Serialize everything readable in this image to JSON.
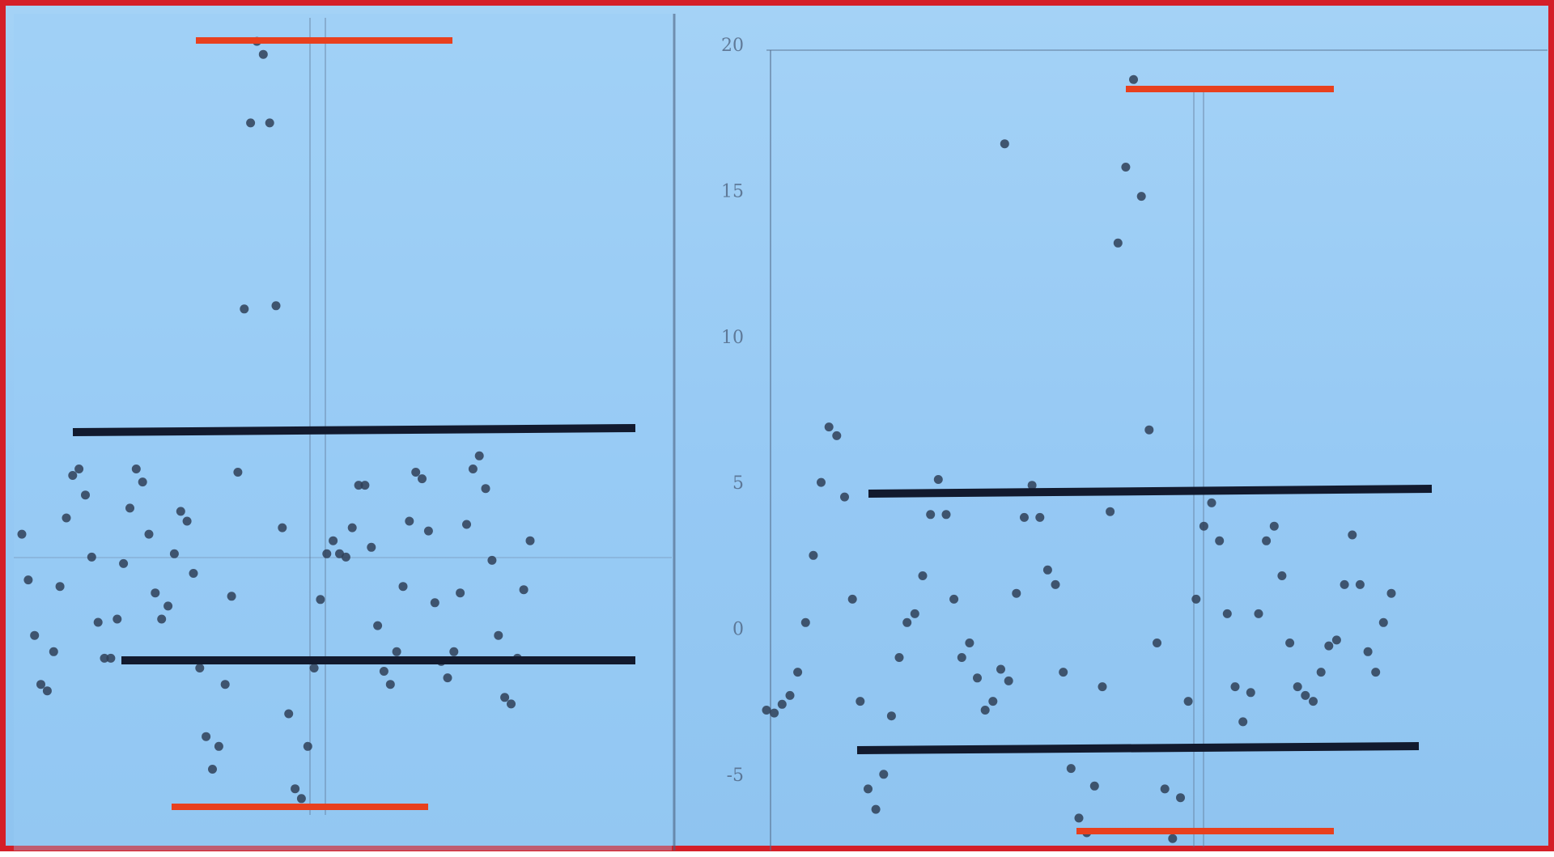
{
  "colors": {
    "background": "#96c9f4",
    "frame": "#d41f28",
    "data_points": "#2f3f57",
    "trace_line": "#5a6f8c",
    "outer_band_lines": "#e8401e",
    "inner_band_lines": "#121a2e"
  },
  "header": {
    "title": ""
  },
  "chart_data": [
    {
      "type": "scatter",
      "title": "",
      "xlabel": "",
      "ylabel": "",
      "grid": false,
      "xlim": [
        0,
        100
      ],
      "ylim": [
        -3.0,
        21.0
      ],
      "y_ticks": [],
      "series": [
        {
          "values": [
            {
              "x": 0,
              "y": 5.6
            },
            {
              "x": 1,
              "y": 4.2
            },
            {
              "x": 2,
              "y": 2.5
            },
            {
              "x": 3,
              "y": 1.0
            },
            {
              "x": 4,
              "y": 0.8
            },
            {
              "x": 5,
              "y": 2.0
            },
            {
              "x": 6,
              "y": 4.0
            },
            {
              "x": 7,
              "y": 6.1
            },
            {
              "x": 8,
              "y": 7.4
            },
            {
              "x": 9,
              "y": 7.6
            },
            {
              "x": 10,
              "y": 6.8
            },
            {
              "x": 11,
              "y": 4.9
            },
            {
              "x": 12,
              "y": 2.9
            },
            {
              "x": 13,
              "y": 1.8
            },
            {
              "x": 14,
              "y": 1.8
            },
            {
              "x": 15,
              "y": 3.0
            },
            {
              "x": 16,
              "y": 4.7
            },
            {
              "x": 17,
              "y": 6.4
            },
            {
              "x": 18,
              "y": 7.6
            },
            {
              "x": 19,
              "y": 7.2
            },
            {
              "x": 20,
              "y": 5.6
            },
            {
              "x": 21,
              "y": 3.8
            },
            {
              "x": 22,
              "y": 3.0
            },
            {
              "x": 23,
              "y": 3.4
            },
            {
              "x": 24,
              "y": 5.0
            },
            {
              "x": 25,
              "y": 6.3
            },
            {
              "x": 26,
              "y": 6.0
            },
            {
              "x": 27,
              "y": 4.4
            },
            {
              "x": 28,
              "y": 1.5
            },
            {
              "x": 29,
              "y": -0.6
            },
            {
              "x": 30,
              "y": -1.6
            },
            {
              "x": 31,
              "y": -0.9
            },
            {
              "x": 32,
              "y": 1.0
            },
            {
              "x": 33,
              "y": 3.7
            },
            {
              "x": 34,
              "y": 7.5
            },
            {
              "x": 35,
              "y": 12.5
            },
            {
              "x": 36,
              "y": 18.2
            },
            {
              "x": 37,
              "y": 20.7
            },
            {
              "x": 38,
              "y": 20.3
            },
            {
              "x": 39,
              "y": 18.2
            },
            {
              "x": 40,
              "y": 12.6
            },
            {
              "x": 41,
              "y": 5.8
            },
            {
              "x": 42,
              "y": 0.1
            },
            {
              "x": 43,
              "y": -2.2
            },
            {
              "x": 44,
              "y": -2.5
            },
            {
              "x": 45,
              "y": -0.9
            },
            {
              "x": 46,
              "y": 1.5
            },
            {
              "x": 47,
              "y": 3.6
            },
            {
              "x": 48,
              "y": 5.0
            },
            {
              "x": 49,
              "y": 5.4
            },
            {
              "x": 50,
              "y": 5.0
            },
            {
              "x": 51,
              "y": 4.9
            },
            {
              "x": 52,
              "y": 5.8
            },
            {
              "x": 53,
              "y": 7.1
            },
            {
              "x": 54,
              "y": 7.1
            },
            {
              "x": 55,
              "y": 5.2
            },
            {
              "x": 56,
              "y": 2.8
            },
            {
              "x": 57,
              "y": 1.4
            },
            {
              "x": 58,
              "y": 1.0
            },
            {
              "x": 59,
              "y": 2.0
            },
            {
              "x": 60,
              "y": 4.0
            },
            {
              "x": 61,
              "y": 6.0
            },
            {
              "x": 62,
              "y": 7.5
            },
            {
              "x": 63,
              "y": 7.3
            },
            {
              "x": 64,
              "y": 5.7
            },
            {
              "x": 65,
              "y": 3.5
            },
            {
              "x": 66,
              "y": 1.7
            },
            {
              "x": 67,
              "y": 1.2
            },
            {
              "x": 68,
              "y": 2.0
            },
            {
              "x": 69,
              "y": 3.8
            },
            {
              "x": 70,
              "y": 5.9
            },
            {
              "x": 71,
              "y": 7.6
            },
            {
              "x": 72,
              "y": 8.0
            },
            {
              "x": 73,
              "y": 7.0
            },
            {
              "x": 74,
              "y": 4.8
            },
            {
              "x": 75,
              "y": 2.5
            },
            {
              "x": 76,
              "y": 0.6
            },
            {
              "x": 77,
              "y": 0.4
            },
            {
              "x": 78,
              "y": 1.8
            },
            {
              "x": 79,
              "y": 3.9
            },
            {
              "x": 80,
              "y": 5.4
            }
          ]
        }
      ]
    },
    {
      "type": "scatter",
      "title": "",
      "xlabel": "",
      "ylabel": "",
      "grid": false,
      "xlim": [
        0,
        100
      ],
      "ylim": [
        -7.5,
        20.5
      ],
      "y_ticks": [
        {
          "value": 20,
          "label": "20"
        },
        {
          "value": 15,
          "label": "15"
        },
        {
          "value": 10,
          "label": "10"
        },
        {
          "value": 5,
          "label": "5"
        },
        {
          "value": 0,
          "label": "0"
        },
        {
          "value": -5,
          "label": "-5"
        }
      ],
      "series": [
        {
          "values": [
            {
              "x": 0,
              "y": -2.8
            },
            {
              "x": 1,
              "y": -2.9
            },
            {
              "x": 2,
              "y": -2.6
            },
            {
              "x": 3,
              "y": -2.3
            },
            {
              "x": 4,
              "y": -1.5
            },
            {
              "x": 5,
              "y": 0.2
            },
            {
              "x": 6,
              "y": 2.5
            },
            {
              "x": 7,
              "y": 5.0
            },
            {
              "x": 8,
              "y": 6.9
            },
            {
              "x": 9,
              "y": 6.6
            },
            {
              "x": 10,
              "y": 4.5
            },
            {
              "x": 11,
              "y": 1.0
            },
            {
              "x": 12,
              "y": -2.5
            },
            {
              "x": 13,
              "y": -5.5
            },
            {
              "x": 14,
              "y": -6.2
            },
            {
              "x": 15,
              "y": -5.0
            },
            {
              "x": 16,
              "y": -3.0
            },
            {
              "x": 17,
              "y": -1.0
            },
            {
              "x": 18,
              "y": 0.2
            },
            {
              "x": 19,
              "y": 0.5
            },
            {
              "x": 20,
              "y": 1.8
            },
            {
              "x": 21,
              "y": 3.9
            },
            {
              "x": 22,
              "y": 5.1
            },
            {
              "x": 23,
              "y": 3.9
            },
            {
              "x": 24,
              "y": 1.0
            },
            {
              "x": 25,
              "y": -1.0
            },
            {
              "x": 26,
              "y": -0.5
            },
            {
              "x": 27,
              "y": -1.7
            },
            {
              "x": 28,
              "y": -2.8
            },
            {
              "x": 29,
              "y": -2.5
            },
            {
              "x": 30,
              "y": -1.4
            },
            {
              "x": 31,
              "y": -1.8
            },
            {
              "x": 32,
              "y": 1.2
            },
            {
              "x": 33,
              "y": 3.8
            },
            {
              "x": 34,
              "y": 4.9
            },
            {
              "x": 35,
              "y": 3.8
            },
            {
              "x": 36,
              "y": 2.0
            },
            {
              "x": 37,
              "y": 1.5
            },
            {
              "x": 38,
              "y": -1.5
            },
            {
              "x": 39,
              "y": -4.8
            },
            {
              "x": 40,
              "y": -6.5
            },
            {
              "x": 41,
              "y": -7.0
            },
            {
              "x": 42,
              "y": -5.4
            },
            {
              "x": 43,
              "y": -2.0
            },
            {
              "x": 44,
              "y": 4.0
            },
            {
              "x": 45,
              "y": 13.2
            },
            {
              "x": 46,
              "y": 15.8
            },
            {
              "x": 47,
              "y": 18.8
            },
            {
              "x": 48,
              "y": 14.8
            },
            {
              "x": 49,
              "y": 6.8
            },
            {
              "x": 50,
              "y": -0.5
            },
            {
              "x": 51,
              "y": -5.5
            },
            {
              "x": 52,
              "y": -7.2
            },
            {
              "x": 53,
              "y": -5.8
            },
            {
              "x": 54,
              "y": -2.5
            },
            {
              "x": 55,
              "y": 1.0
            },
            {
              "x": 56,
              "y": 3.5
            },
            {
              "x": 57,
              "y": 4.3
            },
            {
              "x": 58,
              "y": 3.0
            },
            {
              "x": 59,
              "y": 0.5
            },
            {
              "x": 60,
              "y": -2.0
            },
            {
              "x": 61,
              "y": -3.2
            },
            {
              "x": 62,
              "y": -2.2
            },
            {
              "x": 63,
              "y": 0.5
            },
            {
              "x": 64,
              "y": 3.0
            },
            {
              "x": 65,
              "y": 3.5
            },
            {
              "x": 66,
              "y": 1.8
            },
            {
              "x": 67,
              "y": -0.5
            },
            {
              "x": 68,
              "y": -2.0
            },
            {
              "x": 69,
              "y": -2.3
            },
            {
              "x": 70,
              "y": -2.5
            },
            {
              "x": 71,
              "y": -1.5
            },
            {
              "x": 72,
              "y": -0.6
            },
            {
              "x": 73,
              "y": -0.4
            },
            {
              "x": 74,
              "y": 1.5
            },
            {
              "x": 75,
              "y": 3.2
            },
            {
              "x": 76,
              "y": 1.5
            },
            {
              "x": 77,
              "y": -0.8
            },
            {
              "x": 78,
              "y": -1.5
            },
            {
              "x": 79,
              "y": 0.2
            },
            {
              "x": 80,
              "y": 1.2
            },
            {
              "x": 30.5,
              "y": 16.6
            }
          ]
        }
      ]
    }
  ]
}
